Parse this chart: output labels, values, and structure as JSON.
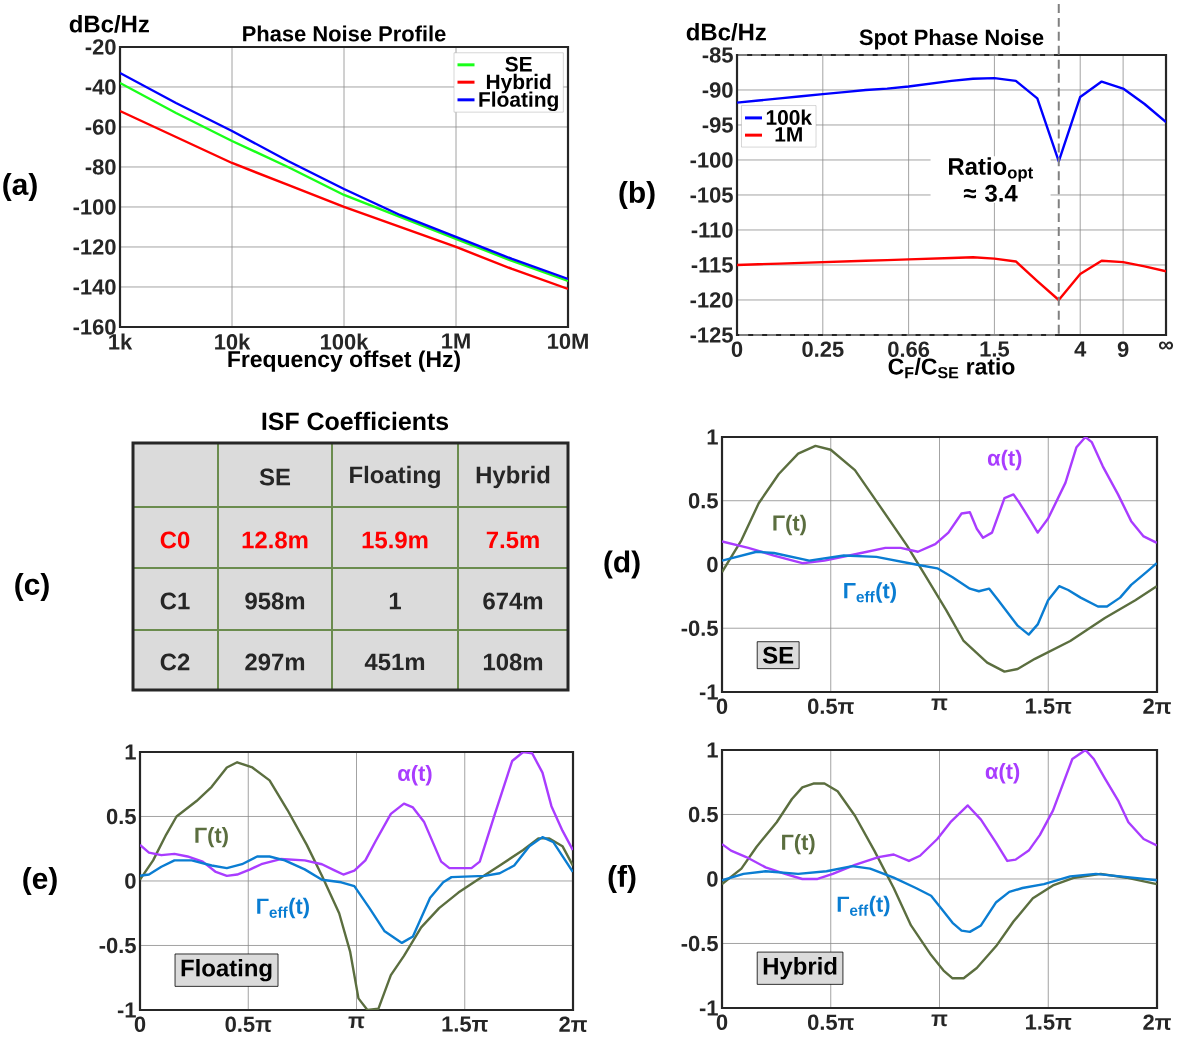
{
  "chart_data": [
    {
      "type": "line",
      "title": "Phase Noise Profile",
      "xlabel": "Frequency offset (Hz)",
      "ylabel": "dBc/Hz",
      "log": "x",
      "grid": true,
      "legend": "top right",
      "annotations": [
        "(a)"
      ],
      "xlim": [
        1000,
        10000000
      ],
      "ylim": [
        -160,
        -20
      ],
      "xticks": [
        {
          "value": 1000,
          "label": "1k"
        },
        {
          "value": 10000,
          "label": "10k"
        },
        {
          "value": 100000,
          "label": "100k"
        },
        {
          "value": 1000000,
          "label": "1M"
        },
        {
          "value": 10000000,
          "label": "10M"
        }
      ],
      "yticks": [
        -160,
        -140,
        -120,
        -100,
        -80,
        -60,
        -40,
        -20
      ],
      "x": [
        1000,
        3162,
        10000,
        31623,
        100000,
        316228,
        1000000,
        3162278,
        10000000
      ],
      "series": [
        {
          "name": "SE",
          "color": "#19ff19",
          "values": [
            -38,
            -53,
            -67,
            -80,
            -94,
            -105,
            -116,
            -127,
            -137
          ]
        },
        {
          "name": "Hybrid",
          "color": "#ff0000",
          "values": [
            -52,
            -65,
            -78,
            -89,
            -100,
            -110,
            -120,
            -131,
            -141
          ]
        },
        {
          "name": "Floating",
          "color": "#0000ff",
          "values": [
            -33,
            -48,
            -62,
            -77,
            -91,
            -104,
            -115,
            -126,
            -136
          ]
        }
      ]
    },
    {
      "type": "line",
      "title": "Spot Phase Noise",
      "xlabel": "C$_{F}$/C$_{SE}$ ratio",
      "ylabel": "dBc/Hz",
      "grid": true,
      "legend": "top left",
      "annotations": [
        "(b)",
        "Ratio$_{opt}$ ≈ 3.4"
      ],
      "ylim": [
        -125,
        -85
      ],
      "categories": [
        "0",
        null,
        null,
        null,
        "0.25",
        null,
        null,
        null,
        "0.66",
        null,
        null,
        null,
        "1.5",
        null,
        null,
        null,
        "4",
        null,
        "9",
        null,
        "∞"
      ],
      "yticks": [
        -125,
        -120,
        -115,
        -110,
        -105,
        -100,
        -95,
        -90,
        -85
      ],
      "series": [
        {
          "name": "100k",
          "color": "#0000ff",
          "values": [
            -91.8,
            -91.5,
            -91.2,
            -90.9,
            -90.6,
            -90.3,
            -90.0,
            -89.8,
            -89.5,
            -89.1,
            -88.7,
            -88.4,
            -88.3,
            -88.7,
            -91.2,
            -100.2,
            -91.0,
            -88.8,
            -89.8,
            -92.0,
            -94.6
          ]
        },
        {
          "name": "1M",
          "color": "#ff0000",
          "values": [
            -115.0,
            -114.9,
            -114.8,
            -114.7,
            -114.6,
            -114.5,
            -114.4,
            -114.3,
            -114.2,
            -114.1,
            -114.0,
            -113.9,
            -114.1,
            -114.5,
            -117.3,
            -120.0,
            -116.3,
            -114.4,
            -114.6,
            -115.2,
            -115.9
          ]
        }
      ]
    },
    {
      "type": "other",
      "title": "ISF Coefficients",
      "annotations": [
        "(c)",
        "SE",
        "Floating",
        "Hybrid",
        "C0",
        "12.8m",
        "15.9m",
        "7.5m",
        "C1",
        "958m",
        "1",
        "674m",
        "C2",
        "297m",
        "451m",
        "108m"
      ]
    },
    {
      "type": "line",
      "grid": true,
      "xlim": [
        0,
        6.2832
      ],
      "ylim": [
        -1,
        1
      ],
      "xticks": [
        0,
        {
          "value": 1.5708,
          "label": "0.5π"
        },
        {
          "value": 3.1416,
          "label": "π"
        },
        {
          "value": 4.7124,
          "label": "1.5π"
        },
        {
          "value": 6.2832,
          "label": "2π"
        }
      ],
      "yticks": [
        -1,
        -0.5,
        0,
        0.5,
        1
      ],
      "annotations": [
        "(d)",
        "SE",
        "Γ(t)",
        "α(t)",
        "Γ$_{eff}$(t)"
      ],
      "series": [
        {
          "color": "#5b6e3f",
          "x": [
            0,
            0.28,
            0.53,
            0.82,
            1.1,
            1.35,
            1.57,
            1.92,
            2.29,
            2.67,
            2.95,
            3.24,
            3.49,
            3.83,
            4.08,
            4.27,
            4.52,
            5.03,
            5.53,
            5.97,
            6.28
          ],
          "values": [
            -0.06,
            0.19,
            0.48,
            0.71,
            0.87,
            0.93,
            0.9,
            0.74,
            0.45,
            0.15,
            -0.1,
            -0.36,
            -0.6,
            -0.77,
            -0.84,
            -0.82,
            -0.74,
            -0.6,
            -0.42,
            -0.28,
            -0.17
          ]
        },
        {
          "color": "#a93cff",
          "x": [
            0,
            0.38,
            0.75,
            1.16,
            1.48,
            2.01,
            2.36,
            2.58,
            2.83,
            3.08,
            3.27,
            3.46,
            3.58,
            3.68,
            3.77,
            3.9,
            4.08,
            4.21,
            4.3,
            4.46,
            4.56,
            4.71,
            4.96,
            5.12,
            5.25,
            5.34,
            5.5,
            5.72,
            5.91,
            6.09,
            6.28
          ],
          "values": [
            0.18,
            0.13,
            0.07,
            0.01,
            0.03,
            0.09,
            0.13,
            0.13,
            0.1,
            0.16,
            0.25,
            0.4,
            0.41,
            0.28,
            0.21,
            0.25,
            0.52,
            0.55,
            0.48,
            0.34,
            0.25,
            0.36,
            0.64,
            0.92,
            1.0,
            0.96,
            0.77,
            0.55,
            0.34,
            0.22,
            0.17
          ]
        },
        {
          "color": "#0a7dd2",
          "x": [
            0,
            0.5,
            0.75,
            1.26,
            1.76,
            2.23,
            2.8,
            3.11,
            3.33,
            3.58,
            3.71,
            3.86,
            3.99,
            4.27,
            4.43,
            4.56,
            4.71,
            4.87,
            5.0,
            5.18,
            5.43,
            5.56,
            5.75,
            5.91,
            6.13,
            6.28
          ],
          "values": [
            0.03,
            0.1,
            0.09,
            0.03,
            0.07,
            0.06,
            0.0,
            -0.03,
            -0.1,
            -0.19,
            -0.21,
            -0.19,
            -0.28,
            -0.48,
            -0.55,
            -0.47,
            -0.28,
            -0.17,
            -0.2,
            -0.26,
            -0.33,
            -0.33,
            -0.26,
            -0.16,
            -0.06,
            0.01
          ]
        }
      ]
    },
    {
      "type": "line",
      "grid": true,
      "xlim": [
        0,
        6.2832
      ],
      "ylim": [
        -1,
        1
      ],
      "xticks": [
        0,
        {
          "value": 1.5708,
          "label": "0.5π"
        },
        {
          "value": 3.1416,
          "label": "π"
        },
        {
          "value": 4.7124,
          "label": "1.5π"
        },
        {
          "value": 6.2832,
          "label": "2π"
        }
      ],
      "yticks": [
        -1,
        -0.5,
        0,
        0.5,
        1
      ],
      "annotations": [
        "(e)",
        "Floating",
        "Γ(t)",
        "α(t)",
        "Γ$_{eff}$(t)"
      ],
      "series": [
        {
          "color": "#5b6e3f",
          "x": [
            0,
            0.19,
            0.38,
            0.53,
            0.82,
            1.04,
            1.26,
            1.41,
            1.63,
            1.88,
            2.14,
            2.42,
            2.64,
            2.89,
            3.05,
            3.17,
            3.3,
            3.46,
            3.64,
            3.83,
            4.08,
            4.34,
            4.62,
            4.9,
            5.22,
            5.56,
            5.78,
            5.94,
            6.13,
            6.28
          ],
          "values": [
            0.01,
            0.16,
            0.36,
            0.5,
            0.62,
            0.73,
            0.88,
            0.92,
            0.88,
            0.78,
            0.55,
            0.28,
            0.04,
            -0.25,
            -0.55,
            -0.91,
            -1.0,
            -0.99,
            -0.73,
            -0.58,
            -0.36,
            -0.21,
            -0.09,
            0.01,
            0.12,
            0.24,
            0.33,
            0.33,
            0.27,
            0.12
          ]
        },
        {
          "color": "#a93cff",
          "x": [
            0,
            0.13,
            0.31,
            0.5,
            0.69,
            0.91,
            1.1,
            1.26,
            1.41,
            1.6,
            1.76,
            2.04,
            2.39,
            2.64,
            2.83,
            2.95,
            3.11,
            3.27,
            3.42,
            3.64,
            3.83,
            3.96,
            4.12,
            4.37,
            4.49,
            4.81,
            4.93,
            5.15,
            5.4,
            5.56,
            5.69,
            5.84,
            5.97,
            6.13,
            6.28
          ],
          "values": [
            0.28,
            0.22,
            0.2,
            0.21,
            0.19,
            0.15,
            0.07,
            0.04,
            0.05,
            0.09,
            0.13,
            0.17,
            0.16,
            0.13,
            0.08,
            0.05,
            0.08,
            0.16,
            0.31,
            0.52,
            0.6,
            0.57,
            0.46,
            0.15,
            0.1,
            0.1,
            0.15,
            0.52,
            0.93,
            1.0,
            0.99,
            0.84,
            0.58,
            0.39,
            0.24
          ]
        },
        {
          "color": "#0a7dd2",
          "x": [
            0,
            0.13,
            0.31,
            0.5,
            0.75,
            1.04,
            1.26,
            1.48,
            1.7,
            1.88,
            2.1,
            2.39,
            2.64,
            2.92,
            3.11,
            3.33,
            3.55,
            3.8,
            3.96,
            4.21,
            4.4,
            4.52,
            5.0,
            5.22,
            5.43,
            5.65,
            5.84,
            6.0,
            6.28
          ],
          "values": [
            0.04,
            0.05,
            0.11,
            0.16,
            0.16,
            0.12,
            0.1,
            0.13,
            0.19,
            0.19,
            0.16,
            0.09,
            0.01,
            -0.01,
            -0.04,
            -0.21,
            -0.39,
            -0.48,
            -0.43,
            -0.13,
            -0.01,
            0.03,
            0.04,
            0.06,
            0.12,
            0.27,
            0.34,
            0.3,
            0.07
          ]
        }
      ]
    },
    {
      "type": "line",
      "grid": true,
      "xlim": [
        0,
        6.2832
      ],
      "ylim": [
        -1,
        1
      ],
      "xticks": [
        0,
        {
          "value": 1.5708,
          "label": "0.5π"
        },
        {
          "value": 3.1416,
          "label": "π"
        },
        {
          "value": 4.7124,
          "label": "1.5π"
        },
        {
          "value": 6.2832,
          "label": "2π"
        }
      ],
      "yticks": [
        -1,
        -0.5,
        0,
        0.5,
        1
      ],
      "annotations": [
        "(f)",
        "Hybrid",
        "Γ(t)",
        "α(t)",
        "Γ$_{eff}$(t)"
      ],
      "series": [
        {
          "color": "#5b6e3f",
          "x": [
            0,
            0.28,
            0.5,
            0.79,
            1.01,
            1.16,
            1.32,
            1.48,
            1.67,
            1.92,
            2.2,
            2.48,
            2.73,
            3.02,
            3.2,
            3.33,
            3.49,
            3.68,
            3.96,
            4.21,
            4.49,
            4.78,
            5.09,
            5.47,
            5.84,
            6.28
          ],
          "values": [
            -0.04,
            0.08,
            0.25,
            0.44,
            0.62,
            0.71,
            0.74,
            0.74,
            0.68,
            0.49,
            0.22,
            -0.07,
            -0.36,
            -0.59,
            -0.71,
            -0.77,
            -0.77,
            -0.69,
            -0.52,
            -0.33,
            -0.15,
            -0.05,
            0.01,
            0.04,
            0.01,
            -0.04
          ]
        },
        {
          "color": "#a93cff",
          "x": [
            0,
            0.13,
            0.35,
            0.63,
            0.91,
            1.16,
            1.38,
            1.6,
            1.92,
            2.26,
            2.48,
            2.7,
            2.86,
            3.11,
            3.3,
            3.55,
            3.74,
            3.96,
            4.12,
            4.24,
            4.43,
            4.59,
            4.78,
            5.06,
            5.25,
            5.37,
            5.53,
            5.72,
            5.87,
            6.09,
            6.28
          ],
          "values": [
            0.27,
            0.22,
            0.17,
            0.09,
            0.04,
            0.0,
            0.0,
            0.04,
            0.11,
            0.17,
            0.19,
            0.14,
            0.18,
            0.31,
            0.44,
            0.57,
            0.46,
            0.28,
            0.14,
            0.15,
            0.22,
            0.34,
            0.53,
            0.93,
            1.0,
            0.93,
            0.78,
            0.61,
            0.44,
            0.31,
            0.26
          ]
        },
        {
          "color": "#0a7dd2",
          "x": [
            0,
            0.31,
            0.63,
            1.1,
            1.51,
            1.88,
            2.14,
            2.48,
            2.8,
            3.02,
            3.17,
            3.33,
            3.46,
            3.58,
            3.74,
            3.96,
            4.15,
            4.34,
            4.65,
            5.03,
            5.4,
            5.75,
            6.28
          ],
          "values": [
            -0.01,
            0.04,
            0.06,
            0.04,
            0.06,
            0.1,
            0.08,
            0.01,
            -0.07,
            -0.13,
            -0.23,
            -0.34,
            -0.4,
            -0.41,
            -0.36,
            -0.18,
            -0.1,
            -0.07,
            -0.04,
            0.02,
            0.04,
            0.02,
            -0.01
          ]
        }
      ]
    }
  ]
}
